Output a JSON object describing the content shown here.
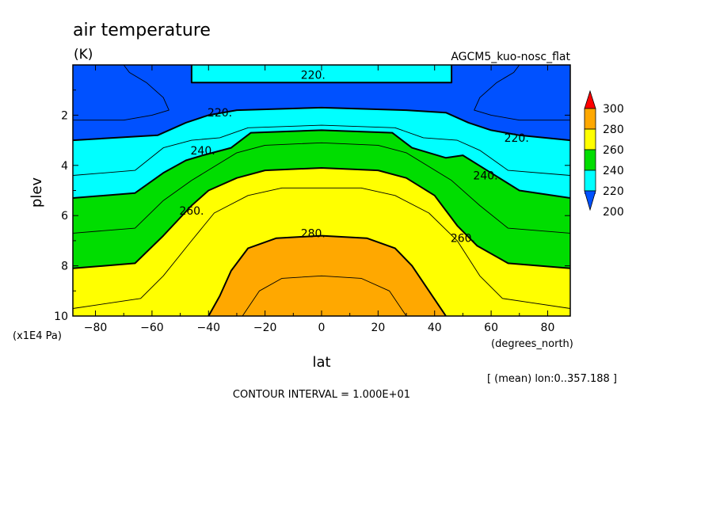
{
  "chart_data": {
    "type": "contour",
    "title": "air temperature",
    "units": "(K)",
    "experiment": "AGCM5_kuo-nosc_flat",
    "xlabel": "lat",
    "xunits": "(degrees_north)",
    "ylabel": "plev",
    "yunits": "(x1E4 Pa)",
    "xlim": [
      -88,
      88
    ],
    "ylim": [
      10,
      0
    ],
    "xticks": [
      -80,
      -60,
      -40,
      -20,
      0,
      20,
      40,
      60,
      80
    ],
    "xtick_labels": [
      "−80",
      "−60",
      "−40",
      "−20",
      "0",
      "20",
      "40",
      "60",
      "80"
    ],
    "yticks": [
      2,
      4,
      6,
      8,
      10
    ],
    "ytick_labels": [
      "2",
      "4",
      "6",
      "8",
      "10"
    ],
    "annotation": "[ (mean) lon:0..357.188 ]",
    "contour_interval_text": "CONTOUR INTERVAL = 1.000E+01",
    "colorbar": {
      "levels": [
        200,
        220,
        240,
        260,
        280,
        300
      ],
      "labels": [
        "300",
        "280",
        "260",
        "240",
        "220",
        "200"
      ],
      "colors": [
        "#0051ff",
        "#00ffff",
        "#00dd00",
        "#ffff00",
        "#ffa800",
        "#ff0000"
      ],
      "extend": "both"
    },
    "contour_labels": [
      {
        "text": "220.",
        "x": -3,
        "y": 0.4
      },
      {
        "text": "220.",
        "x": -36,
        "y": 1.9
      },
      {
        "text": "220.",
        "x": 69,
        "y": 2.9
      },
      {
        "text": "240.",
        "x": -42,
        "y": 3.4
      },
      {
        "text": "240.",
        "x": 58,
        "y": 4.4
      },
      {
        "text": "260.",
        "x": -46,
        "y": 5.8
      },
      {
        "text": "260.",
        "x": 50,
        "y": 6.9
      },
      {
        "text": "280.",
        "x": -3,
        "y": 6.7
      }
    ],
    "fill_regions": [
      {
        "color": "#0051ff",
        "points": [
          [
            -88,
            0
          ],
          [
            88,
            0
          ],
          [
            88,
            3.0
          ],
          [
            -88,
            3.0
          ]
        ]
      },
      {
        "color": "#00ffff",
        "points": [
          [
            -46,
            0
          ],
          [
            46,
            0
          ],
          [
            46,
            0.7
          ],
          [
            -46,
            0.7
          ]
        ]
      },
      {
        "color": "#00ffff",
        "points": [
          [
            -88,
            3.0
          ],
          [
            -58,
            2.8
          ],
          [
            -48,
            2.3
          ],
          [
            -40,
            2.0
          ],
          [
            -30,
            1.8
          ],
          [
            0,
            1.7
          ],
          [
            30,
            1.8
          ],
          [
            44,
            1.9
          ],
          [
            52,
            2.3
          ],
          [
            60,
            2.6
          ],
          [
            70,
            2.8
          ],
          [
            88,
            3.0
          ],
          [
            88,
            10
          ],
          [
            -88,
            10
          ]
        ]
      },
      {
        "color": "#00dd00",
        "points": [
          [
            -88,
            5.3
          ],
          [
            -66,
            5.1
          ],
          [
            -56,
            4.3
          ],
          [
            -48,
            3.8
          ],
          [
            -42,
            3.6
          ],
          [
            -32,
            3.3
          ],
          [
            -25,
            2.7
          ],
          [
            0,
            2.6
          ],
          [
            25,
            2.7
          ],
          [
            32,
            3.3
          ],
          [
            44,
            3.7
          ],
          [
            50,
            3.6
          ],
          [
            60,
            4.3
          ],
          [
            70,
            5.0
          ],
          [
            88,
            5.3
          ],
          [
            88,
            10
          ],
          [
            -88,
            10
          ]
        ]
      },
      {
        "color": "#ffff00",
        "points": [
          [
            -88,
            8.1
          ],
          [
            -66,
            7.9
          ],
          [
            -56,
            6.8
          ],
          [
            -46,
            5.6
          ],
          [
            -40,
            5.0
          ],
          [
            -30,
            4.5
          ],
          [
            -20,
            4.2
          ],
          [
            0,
            4.1
          ],
          [
            20,
            4.2
          ],
          [
            30,
            4.5
          ],
          [
            40,
            5.2
          ],
          [
            48,
            6.4
          ],
          [
            55,
            7.2
          ],
          [
            66,
            7.9
          ],
          [
            88,
            8.1
          ],
          [
            88,
            10
          ],
          [
            -88,
            10
          ]
        ]
      },
      {
        "color": "#ffa800",
        "points": [
          [
            -40,
            10
          ],
          [
            -36,
            9.2
          ],
          [
            -32,
            8.2
          ],
          [
            -26,
            7.3
          ],
          [
            -16,
            6.9
          ],
          [
            0,
            6.8
          ],
          [
            16,
            6.9
          ],
          [
            26,
            7.3
          ],
          [
            32,
            8.0
          ],
          [
            38,
            9.0
          ],
          [
            44,
            10
          ]
        ]
      }
    ],
    "thick_lines": [
      [
        [
          -88,
          3.0
        ],
        [
          -58,
          2.8
        ],
        [
          -48,
          2.3
        ],
        [
          -40,
          2.0
        ],
        [
          -30,
          1.8
        ],
        [
          0,
          1.7
        ],
        [
          30,
          1.8
        ],
        [
          44,
          1.9
        ],
        [
          52,
          2.3
        ],
        [
          60,
          2.6
        ],
        [
          70,
          2.8
        ],
        [
          88,
          3.0
        ]
      ],
      [
        [
          -88,
          5.3
        ],
        [
          -66,
          5.1
        ],
        [
          -56,
          4.3
        ],
        [
          -48,
          3.8
        ],
        [
          -42,
          3.6
        ],
        [
          -32,
          3.3
        ],
        [
          -25,
          2.7
        ],
        [
          0,
          2.6
        ],
        [
          25,
          2.7
        ],
        [
          32,
          3.3
        ],
        [
          44,
          3.7
        ],
        [
          50,
          3.6
        ],
        [
          60,
          4.3
        ],
        [
          70,
          5.0
        ],
        [
          88,
          5.3
        ]
      ],
      [
        [
          -88,
          8.1
        ],
        [
          -66,
          7.9
        ],
        [
          -56,
          6.8
        ],
        [
          -46,
          5.6
        ],
        [
          -40,
          5.0
        ],
        [
          -30,
          4.5
        ],
        [
          -20,
          4.2
        ],
        [
          0,
          4.1
        ],
        [
          20,
          4.2
        ],
        [
          30,
          4.5
        ],
        [
          40,
          5.2
        ],
        [
          48,
          6.4
        ],
        [
          55,
          7.2
        ],
        [
          66,
          7.9
        ],
        [
          88,
          8.1
        ]
      ],
      [
        [
          -40,
          10
        ],
        [
          -36,
          9.2
        ],
        [
          -32,
          8.2
        ],
        [
          -26,
          7.3
        ],
        [
          -16,
          6.9
        ],
        [
          0,
          6.8
        ],
        [
          16,
          6.9
        ],
        [
          26,
          7.3
        ],
        [
          32,
          8.0
        ],
        [
          38,
          9.0
        ],
        [
          44,
          10
        ]
      ],
      [
        [
          -46,
          0
        ],
        [
          -46,
          0.7
        ],
        [
          46,
          0.7
        ],
        [
          46,
          0
        ]
      ]
    ],
    "thin_lines": [
      [
        [
          -88,
          2.2
        ],
        [
          -70,
          2.2
        ],
        [
          -60,
          2.0
        ],
        [
          -54,
          1.8
        ],
        [
          -56,
          1.3
        ],
        [
          -62,
          0.7
        ],
        [
          -68,
          0.3
        ],
        [
          -70,
          0
        ]
      ],
      [
        [
          88,
          2.2
        ],
        [
          70,
          2.2
        ],
        [
          60,
          2.0
        ],
        [
          54,
          1.8
        ],
        [
          56,
          1.3
        ],
        [
          62,
          0.7
        ],
        [
          68,
          0.3
        ],
        [
          70,
          0
        ]
      ],
      [
        [
          -88,
          4.4
        ],
        [
          -66,
          4.2
        ],
        [
          -56,
          3.3
        ],
        [
          -46,
          3.0
        ],
        [
          -36,
          2.9
        ],
        [
          -26,
          2.5
        ],
        [
          0,
          2.4
        ],
        [
          26,
          2.5
        ],
        [
          36,
          2.9
        ],
        [
          48,
          3.0
        ],
        [
          56,
          3.4
        ],
        [
          66,
          4.2
        ],
        [
          88,
          4.4
        ]
      ],
      [
        [
          -88,
          6.7
        ],
        [
          -66,
          6.5
        ],
        [
          -56,
          5.4
        ],
        [
          -46,
          4.6
        ],
        [
          -30,
          3.5
        ],
        [
          -20,
          3.2
        ],
        [
          0,
          3.1
        ],
        [
          20,
          3.2
        ],
        [
          30,
          3.5
        ],
        [
          46,
          4.6
        ],
        [
          56,
          5.6
        ],
        [
          66,
          6.5
        ],
        [
          88,
          6.7
        ]
      ],
      [
        [
          -88,
          9.7
        ],
        [
          -64,
          9.3
        ],
        [
          -56,
          8.4
        ],
        [
          -46,
          7.0
        ],
        [
          -38,
          5.9
        ],
        [
          -26,
          5.2
        ],
        [
          -14,
          4.9
        ],
        [
          0,
          4.9
        ],
        [
          14,
          4.9
        ],
        [
          26,
          5.2
        ],
        [
          38,
          5.9
        ],
        [
          48,
          7.0
        ],
        [
          56,
          8.4
        ],
        [
          64,
          9.3
        ],
        [
          88,
          9.7
        ]
      ],
      [
        [
          -28,
          10
        ],
        [
          -22,
          9.0
        ],
        [
          -14,
          8.5
        ],
        [
          0,
          8.4
        ],
        [
          14,
          8.5
        ],
        [
          24,
          9.0
        ],
        [
          30,
          10
        ]
      ]
    ]
  }
}
